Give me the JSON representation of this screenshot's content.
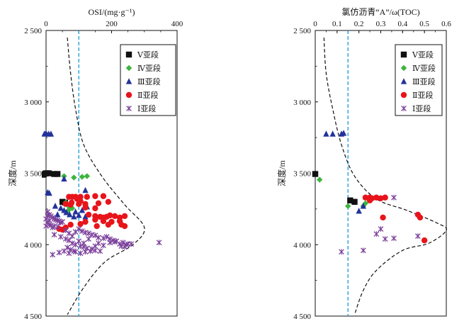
{
  "chart_data": [
    {
      "type": "scatter",
      "title": "",
      "xlabel": "OSI/(mg·g⁻¹)",
      "ylabel": "深度/m",
      "xlim": [
        0,
        400
      ],
      "ylim": [
        2500,
        4500
      ],
      "y_inverted": true,
      "x_axis_position": "top",
      "x_ticks": [
        0,
        200,
        400
      ],
      "x_tick_labels": [
        "0",
        "200",
        "400"
      ],
      "y_ticks": [
        2500,
        3000,
        3500,
        4000,
        4500
      ],
      "y_tick_labels": [
        "2 500",
        "3 000",
        "3 500",
        "4 000",
        "4 500"
      ],
      "grid": false,
      "legend_position": "top-right",
      "reference_line": {
        "x": 100,
        "style": "dashed",
        "color": "#1a9ad6"
      },
      "trend_curve": [
        {
          "x": 65,
          "y": 2550
        },
        {
          "x": 75,
          "y": 2800
        },
        {
          "x": 90,
          "y": 3050
        },
        {
          "x": 115,
          "y": 3300
        },
        {
          "x": 170,
          "y": 3520
        },
        {
          "x": 240,
          "y": 3720
        },
        {
          "x": 300,
          "y": 3880
        },
        {
          "x": 265,
          "y": 4000
        },
        {
          "x": 180,
          "y": 4120
        },
        {
          "x": 115,
          "y": 4300
        },
        {
          "x": 65,
          "y": 4490
        }
      ],
      "series": [
        {
          "name": "Ⅴ亚段",
          "marker": "square",
          "color": "#111111",
          "points": [
            [
              -10,
              3510
            ],
            [
              -6,
              3505
            ],
            [
              0,
              3500
            ],
            [
              8,
              3500
            ],
            [
              25,
              3505
            ],
            [
              35,
              3505
            ],
            [
              50,
              3700
            ],
            [
              58,
              3705
            ]
          ]
        },
        {
          "name": "Ⅳ亚段",
          "marker": "diamond",
          "color": "#3cb43c",
          "points": [
            [
              55,
              3520
            ],
            [
              85,
              3530
            ],
            [
              110,
              3525
            ],
            [
              125,
              3520
            ],
            [
              60,
              3705
            ],
            [
              65,
              3720
            ],
            [
              70,
              3730
            ],
            [
              72,
              3740
            ],
            [
              80,
              3745
            ],
            [
              68,
              3760
            ],
            [
              74,
              3715
            ]
          ]
        },
        {
          "name": "Ⅲ亚段",
          "marker": "triangle",
          "color": "#23329b",
          "points": [
            [
              -5,
              3225
            ],
            [
              0,
              3220
            ],
            [
              8,
              3225
            ],
            [
              15,
              3225
            ],
            [
              55,
              3540
            ],
            [
              5,
              3635
            ],
            [
              10,
              3640
            ],
            [
              28,
              3730
            ],
            [
              45,
              3745
            ],
            [
              55,
              3760
            ],
            [
              62,
              3775
            ],
            [
              72,
              3790
            ],
            [
              85,
              3805
            ],
            [
              100,
              3795
            ],
            [
              110,
              3760
            ],
            [
              125,
              3735
            ],
            [
              120,
              3805
            ],
            [
              35,
              3790
            ],
            [
              90,
              3770
            ],
            [
              120,
              3620
            ]
          ]
        },
        {
          "name": "Ⅱ亚段",
          "marker": "circle",
          "color": "#e8141b",
          "points": [
            [
              70,
              3665
            ],
            [
              80,
              3665
            ],
            [
              90,
              3665
            ],
            [
              105,
              3665
            ],
            [
              125,
              3665
            ],
            [
              150,
              3660
            ],
            [
              175,
              3660
            ],
            [
              95,
              3680
            ],
            [
              105,
              3695
            ],
            [
              78,
              3705
            ],
            [
              60,
              3715
            ],
            [
              75,
              3720
            ],
            [
              100,
              3715
            ],
            [
              120,
              3715
            ],
            [
              160,
              3710
            ],
            [
              190,
              3700
            ],
            [
              120,
              3740
            ],
            [
              150,
              3745
            ],
            [
              130,
              3790
            ],
            [
              150,
              3800
            ],
            [
              165,
              3805
            ],
            [
              175,
              3810
            ],
            [
              185,
              3805
            ],
            [
              195,
              3795
            ],
            [
              210,
              3800
            ],
            [
              225,
              3810
            ],
            [
              240,
              3800
            ],
            [
              150,
              3825
            ],
            [
              175,
              3835
            ],
            [
              200,
              3840
            ],
            [
              225,
              3835
            ],
            [
              240,
              3870
            ],
            [
              230,
              3860
            ],
            [
              190,
              3860
            ],
            [
              155,
              3870
            ],
            [
              120,
              3840
            ],
            [
              105,
              3855
            ],
            [
              75,
              3860
            ],
            [
              60,
              3880
            ],
            [
              50,
              3895
            ],
            [
              40,
              3890
            ]
          ]
        },
        {
          "name": "Ⅰ亚段",
          "marker": "x",
          "color": "#7b3f9a",
          "points": [
            [
              5,
              3770
            ],
            [
              10,
              3790
            ],
            [
              15,
              3800
            ],
            [
              20,
              3810
            ],
            [
              25,
              3820
            ],
            [
              30,
              3825
            ],
            [
              35,
              3830
            ],
            [
              40,
              3835
            ],
            [
              45,
              3845
            ],
            [
              50,
              3840
            ],
            [
              0,
              3820
            ],
            [
              5,
              3845
            ],
            [
              10,
              3860
            ],
            [
              15,
              3865
            ],
            [
              20,
              3880
            ],
            [
              25,
              3870
            ],
            [
              35,
              3875
            ],
            [
              10,
              3830
            ],
            [
              5,
              3795
            ],
            [
              0,
              3870
            ],
            [
              60,
              3900
            ],
            [
              70,
              3920
            ],
            [
              80,
              3940
            ],
            [
              90,
              3910
            ],
            [
              100,
              3890
            ],
            [
              110,
              3905
            ],
            [
              120,
              3915
            ],
            [
              130,
              3920
            ],
            [
              140,
              3930
            ],
            [
              150,
              3935
            ],
            [
              160,
              3950
            ],
            [
              175,
              3955
            ],
            [
              185,
              3945
            ],
            [
              195,
              3960
            ],
            [
              205,
              3970
            ],
            [
              215,
              3975
            ],
            [
              225,
              3995
            ],
            [
              230,
              4010
            ],
            [
              240,
              4015
            ],
            [
              245,
              4000
            ],
            [
              250,
              3995
            ],
            [
              235,
              3985
            ],
            [
              260,
              3995
            ],
            [
              25,
              3930
            ],
            [
              45,
              3945
            ],
            [
              60,
              3960
            ],
            [
              70,
              3970
            ],
            [
              80,
              3990
            ],
            [
              90,
              4000
            ],
            [
              105,
              4010
            ],
            [
              115,
              4015
            ],
            [
              125,
              4025
            ],
            [
              140,
              4030
            ],
            [
              150,
              4040
            ],
            [
              165,
              4045
            ],
            [
              175,
              4005
            ],
            [
              195,
              3985
            ],
            [
              210,
              3980
            ],
            [
              65,
              4020
            ],
            [
              75,
              4035
            ],
            [
              85,
              4045
            ],
            [
              90,
              4050
            ],
            [
              105,
              4060
            ],
            [
              120,
              4050
            ],
            [
              135,
              4045
            ],
            [
              150,
              4010
            ],
            [
              40,
              4055
            ],
            [
              55,
              4045
            ],
            [
              20,
              4070
            ],
            [
              70,
              4060
            ],
            [
              130,
              3960
            ],
            [
              100,
              3975
            ],
            [
              160,
              3990
            ],
            [
              115,
              3990
            ],
            [
              345,
              3985
            ]
          ]
        }
      ]
    },
    {
      "type": "scatter",
      "title": "",
      "xlabel": "氯仿沥青“A”/ω(TOC)",
      "ylabel": "深度/m",
      "xlim": [
        0,
        0.6
      ],
      "ylim": [
        2500,
        4500
      ],
      "y_inverted": true,
      "x_axis_position": "top",
      "x_ticks": [
        0,
        0.1,
        0.2,
        0.3,
        0.4,
        0.5,
        0.6
      ],
      "x_tick_labels": [
        "0",
        "0.1",
        "0.2",
        "0.3",
        "0.4",
        "0.5",
        "0.6"
      ],
      "y_ticks": [
        2500,
        3000,
        3500,
        4000,
        4500
      ],
      "y_tick_labels": [
        "2 500",
        "3 000",
        "3 500",
        "4 000",
        "4 500"
      ],
      "grid": false,
      "legend_position": "top-right",
      "reference_line": {
        "x": 0.15,
        "style": "dashed",
        "color": "#1a9ad6"
      },
      "trend_curve": [
        {
          "x": 0.04,
          "y": 2550
        },
        {
          "x": 0.05,
          "y": 2800
        },
        {
          "x": 0.08,
          "y": 3050
        },
        {
          "x": 0.12,
          "y": 3300
        },
        {
          "x": 0.18,
          "y": 3520
        },
        {
          "x": 0.28,
          "y": 3680
        },
        {
          "x": 0.42,
          "y": 3760
        },
        {
          "x": 0.56,
          "y": 3850
        },
        {
          "x": 0.6,
          "y": 3900
        },
        {
          "x": 0.52,
          "y": 3990
        },
        {
          "x": 0.4,
          "y": 4040
        },
        {
          "x": 0.28,
          "y": 4180
        },
        {
          "x": 0.22,
          "y": 4320
        },
        {
          "x": 0.18,
          "y": 4490
        }
      ],
      "series": [
        {
          "name": "Ⅴ亚段",
          "marker": "square",
          "color": "#111111",
          "points": [
            [
              0.0,
              3505
            ],
            [
              0.16,
              3690
            ],
            [
              0.18,
              3700
            ]
          ]
        },
        {
          "name": "Ⅳ亚段",
          "marker": "diamond",
          "color": "#3cb43c",
          "points": [
            [
              0.02,
              3545
            ],
            [
              0.15,
              3730
            ],
            [
              0.22,
              3730
            ],
            [
              0.23,
              3710
            ]
          ]
        },
        {
          "name": "Ⅲ亚段",
          "marker": "triangle",
          "color": "#23329b",
          "points": [
            [
              0.05,
              3225
            ],
            [
              0.08,
              3225
            ],
            [
              0.12,
              3225
            ],
            [
              0.13,
              3220
            ],
            [
              0.2,
              3765
            ],
            [
              0.22,
              3730
            ]
          ]
        },
        {
          "name": "Ⅱ亚段",
          "marker": "circle",
          "color": "#e8141b",
          "points": [
            [
              0.23,
              3670
            ],
            [
              0.25,
              3670
            ],
            [
              0.26,
              3675
            ],
            [
              0.28,
              3670
            ],
            [
              0.3,
              3675
            ],
            [
              0.32,
              3670
            ],
            [
              0.25,
              3690
            ],
            [
              0.31,
              3810
            ],
            [
              0.47,
              3790
            ],
            [
              0.48,
              3810
            ],
            [
              0.5,
              3970
            ]
          ]
        },
        {
          "name": "Ⅰ亚段",
          "marker": "x",
          "color": "#7b3f9a",
          "points": [
            [
              0.36,
              3670
            ],
            [
              0.3,
              3890
            ],
            [
              0.28,
              3925
            ],
            [
              0.32,
              3960
            ],
            [
              0.36,
              3955
            ],
            [
              0.47,
              3940
            ],
            [
              0.22,
              4040
            ],
            [
              0.12,
              4050
            ]
          ]
        }
      ]
    }
  ]
}
